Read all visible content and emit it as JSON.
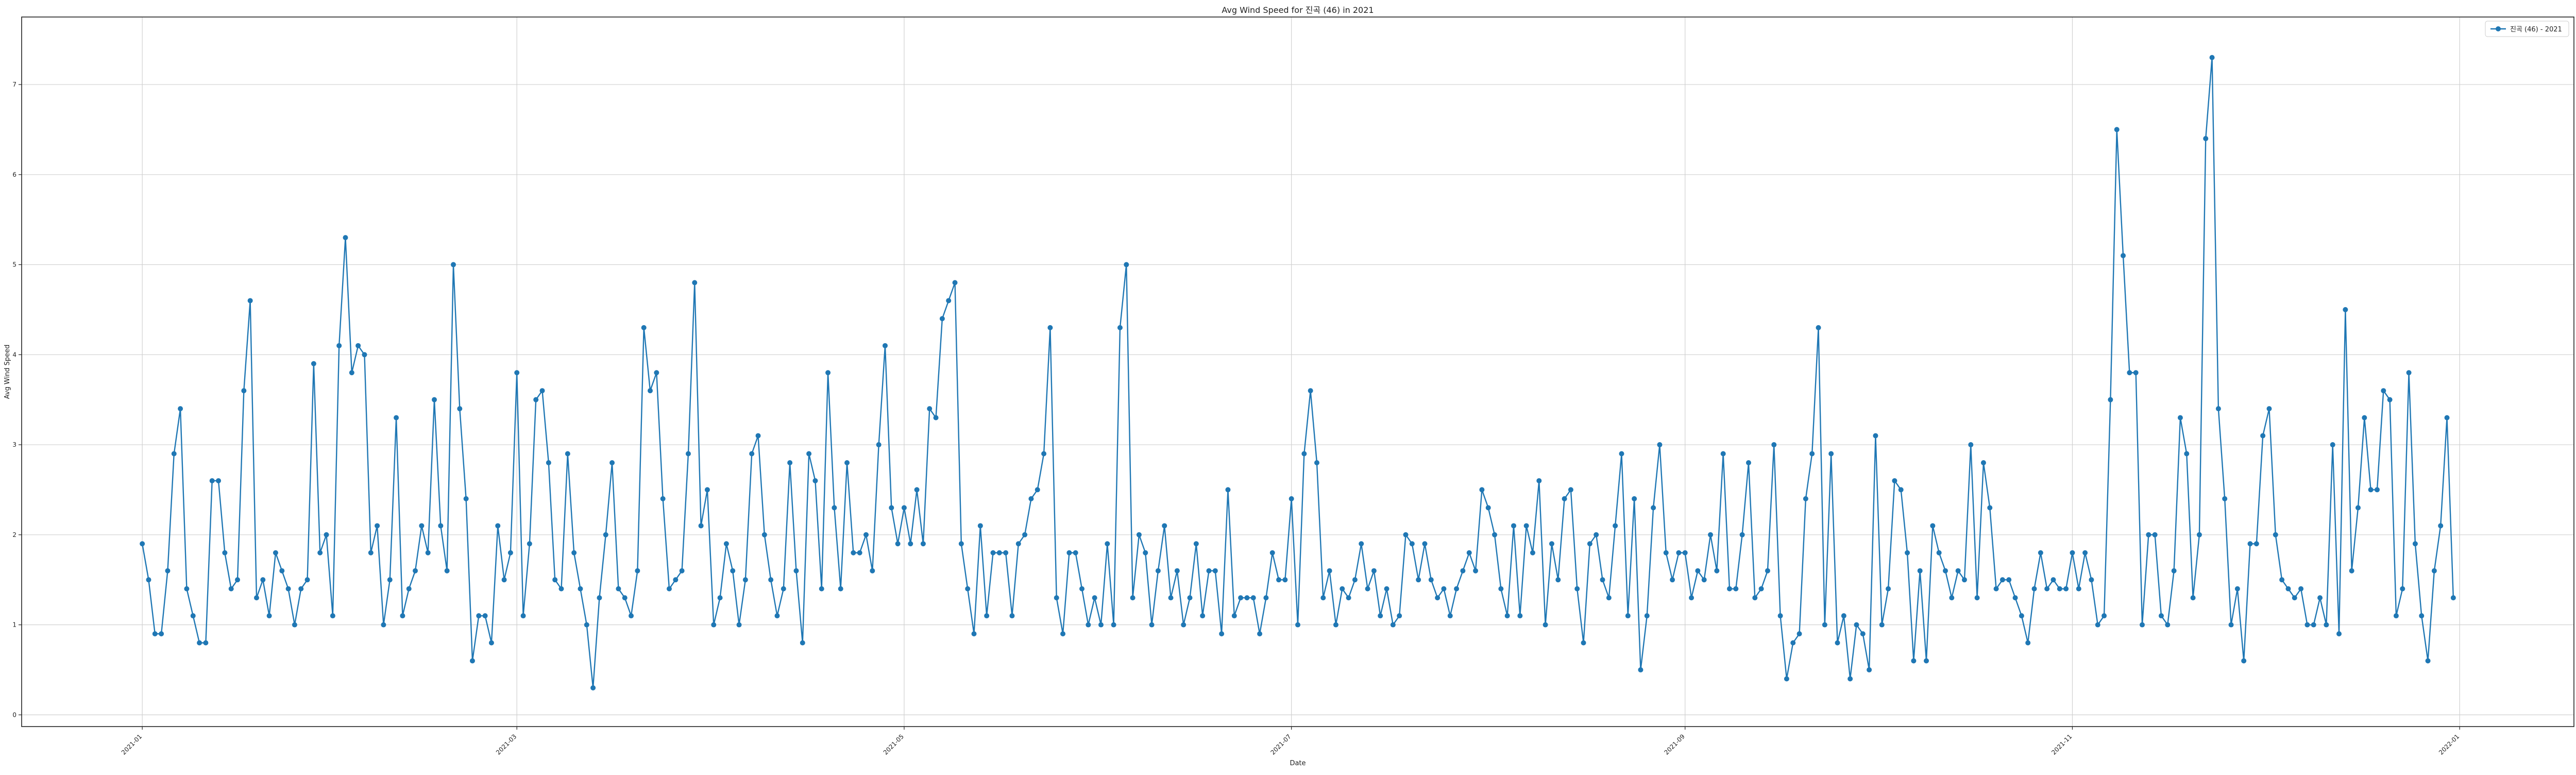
{
  "chart_data": {
    "type": "line",
    "title": "Avg Wind Speed for 진곡 (46) in 2021",
    "xlabel": "Date",
    "ylabel": "Avg Wind Speed",
    "x_start": "2021-01-01",
    "x_range": [
      "2020-12-13",
      "2022-01-19"
    ],
    "ylim": [
      -0.13,
      7.75
    ],
    "x_ticks": [
      "2021-01",
      "2021-03",
      "2021-05",
      "2021-07",
      "2021-09",
      "2021-11",
      "2022-01"
    ],
    "y_ticks": [
      "0",
      "1",
      "2",
      "3",
      "4",
      "5",
      "6",
      "7"
    ],
    "grid": true,
    "legend_position": "top-right",
    "colors": {
      "series": "#1f77b4",
      "grid": "#d0d0d0",
      "axis": "#222222"
    },
    "series": [
      {
        "name": "진곡 (46) - 2021",
        "values": [
          1.9,
          1.5,
          0.9,
          0.9,
          1.6,
          2.9,
          3.4,
          1.4,
          1.1,
          0.8,
          0.8,
          2.6,
          2.6,
          1.8,
          1.4,
          1.5,
          3.6,
          4.6,
          1.3,
          1.5,
          1.1,
          1.8,
          1.6,
          1.4,
          1.0,
          1.4,
          1.5,
          3.9,
          1.8,
          2.0,
          1.1,
          4.1,
          5.3,
          3.8,
          4.1,
          4.0,
          1.8,
          2.1,
          1.0,
          1.5,
          3.3,
          1.1,
          1.4,
          1.6,
          2.1,
          1.8,
          3.5,
          2.1,
          1.6,
          5.0,
          3.4,
          2.4,
          0.6,
          1.1,
          1.1,
          0.8,
          2.1,
          1.5,
          1.8,
          3.8,
          1.1,
          1.9,
          3.5,
          3.6,
          2.8,
          1.5,
          1.4,
          2.9,
          1.8,
          1.4,
          1.0,
          0.3,
          1.3,
          2.0,
          2.8,
          1.4,
          1.3,
          1.1,
          1.6,
          4.3,
          3.6,
          3.8,
          2.4,
          1.4,
          1.5,
          1.6,
          2.9,
          4.8,
          2.1,
          2.5,
          1.0,
          1.3,
          1.9,
          1.6,
          1.0,
          1.5,
          2.9,
          3.1,
          2.0,
          1.5,
          1.1,
          1.4,
          2.8,
          1.6,
          0.8,
          2.9,
          2.6,
          1.4,
          3.8,
          2.3,
          1.4,
          2.8,
          1.8,
          1.8,
          2.0,
          1.6,
          3.0,
          4.1,
          2.3,
          1.9,
          2.3,
          1.9,
          2.5,
          1.9,
          3.4,
          3.3,
          4.4,
          4.6,
          4.8,
          1.9,
          1.4,
          0.9,
          2.1,
          1.1,
          1.8,
          1.8,
          1.8,
          1.1,
          1.9,
          2.0,
          2.4,
          2.5,
          2.9,
          4.3,
          1.3,
          0.9,
          1.8,
          1.8,
          1.4,
          1.0,
          1.3,
          1.0,
          1.9,
          1.0,
          4.3,
          5.0,
          1.3,
          2.0,
          1.8,
          1.0,
          1.6,
          2.1,
          1.3,
          1.6,
          1.0,
          1.3,
          1.9,
          1.1,
          1.6,
          1.6,
          0.9,
          2.5,
          1.1,
          1.3,
          1.3,
          1.3,
          0.9,
          1.3,
          1.8,
          1.5,
          1.5,
          2.4,
          1.0,
          2.9,
          3.6,
          2.8,
          1.3,
          1.6,
          1.0,
          1.4,
          1.3,
          1.5,
          1.9,
          1.4,
          1.6,
          1.1,
          1.4,
          1.0,
          1.1,
          2.0,
          1.9,
          1.5,
          1.9,
          1.5,
          1.3,
          1.4,
          1.1,
          1.4,
          1.6,
          1.8,
          1.6,
          2.5,
          2.3,
          2.0,
          1.4,
          1.1,
          2.1,
          1.1,
          2.1,
          1.8,
          2.6,
          1.0,
          1.9,
          1.5,
          2.4,
          2.5,
          1.4,
          0.8,
          1.9,
          2.0,
          1.5,
          1.3,
          2.1,
          2.9,
          1.1,
          2.4,
          0.5,
          1.1,
          2.3,
          3.0,
          1.8,
          1.5,
          1.8,
          1.8,
          1.3,
          1.6,
          1.5,
          2.0,
          1.6,
          2.9,
          1.4,
          1.4,
          2.0,
          2.8,
          1.3,
          1.4,
          1.6,
          3.0,
          1.1,
          0.4,
          0.8,
          0.9,
          2.4,
          2.9,
          4.3,
          1.0,
          2.9,
          0.8,
          1.1,
          0.4,
          1.0,
          0.9,
          0.5,
          3.1,
          1.0,
          1.4,
          2.6,
          2.5,
          1.8,
          0.6,
          1.6,
          0.6,
          2.1,
          1.8,
          1.6,
          1.3,
          1.6,
          1.5,
          3.0,
          1.3,
          2.8,
          2.3,
          1.4,
          1.5,
          1.5,
          1.3,
          1.1,
          0.8,
          1.4,
          1.8,
          1.4,
          1.5,
          1.4,
          1.4,
          1.8,
          1.4,
          1.8,
          1.5,
          1.0,
          1.1,
          3.5,
          6.5,
          5.1,
          3.8,
          3.8,
          1.0,
          2.0,
          2.0,
          1.1,
          1.0,
          1.6,
          3.3,
          2.9,
          1.3,
          2.0,
          6.4,
          7.3,
          3.4,
          2.4,
          1.0,
          1.4,
          0.6,
          1.9,
          1.9,
          3.1,
          3.4,
          2.0,
          1.5,
          1.4,
          1.3,
          1.4,
          1.0,
          1.0,
          1.3,
          1.0,
          3.0,
          0.9,
          4.5,
          1.6,
          2.3,
          3.3,
          2.5,
          2.5,
          3.6,
          3.5,
          1.1,
          1.4,
          3.8,
          1.9,
          1.1,
          0.6,
          1.6,
          2.1,
          3.3,
          1.3
        ]
      }
    ]
  }
}
